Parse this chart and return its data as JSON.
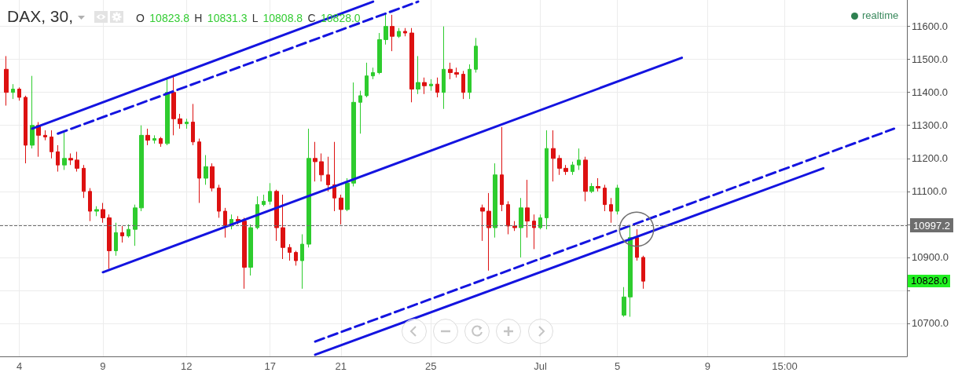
{
  "chart_data": {
    "type": "candlestick",
    "title": "DAX, 30,",
    "subtitle": "O 10823.8 H 10831.3 L 10808.8 C 10828.0",
    "annotations": [
      "realtime",
      "10828.0"
    ],
    "categories": [
      null,
      null,
      null,
      "4",
      null,
      null,
      null,
      null,
      null,
      null,
      null,
      null,
      null,
      null,
      null,
      null,
      "9",
      null,
      null,
      null,
      null,
      null,
      null,
      null,
      null,
      null,
      null,
      null,
      null,
      "12",
      null,
      null,
      null,
      null,
      null,
      null,
      null,
      null,
      null,
      null,
      null,
      null,
      "17",
      null,
      null,
      null,
      null,
      null,
      null,
      null,
      null,
      null,
      null,
      "21",
      null,
      null,
      null,
      null,
      null,
      null,
      null,
      null,
      null,
      null,
      null,
      null,
      null,
      "25",
      null,
      null,
      null,
      null,
      null,
      null,
      null,
      null,
      null,
      null,
      null,
      null,
      null,
      null,
      null,
      null,
      "Jul",
      null,
      null,
      null,
      null,
      null,
      null,
      null,
      null,
      null,
      null,
      null,
      "5",
      null,
      null,
      null,
      null,
      null,
      null,
      null,
      null,
      null,
      null,
      null,
      null,
      null,
      "9",
      null,
      null,
      null,
      null,
      null,
      null,
      null,
      null,
      null,
      null,
      null,
      "15:00",
      null,
      null,
      null,
      null,
      null,
      null,
      null,
      null,
      null,
      null,
      null,
      null,
      null,
      null,
      null,
      null,
      null,
      null,
      null
    ],
    "ylim": [
      10600,
      11680
    ],
    "yticks": [
      {
        "value": 10700,
        "label": "10700.0"
      },
      {
        "value": 10800,
        "label": null
      },
      {
        "value": 10900,
        "label": "10900.0"
      },
      {
        "value": 11000,
        "label": null
      },
      {
        "value": 11100,
        "label": "11100.0"
      },
      {
        "value": 11200,
        "label": "11200.0"
      },
      {
        "value": 11300,
        "label": "11300.0"
      },
      {
        "value": 11400,
        "label": "11400.0"
      },
      {
        "value": 11500,
        "label": "11500.0"
      },
      {
        "value": 11600,
        "label": "11600.0"
      }
    ],
    "grid": true,
    "ref_lines": [
      {
        "axis": "y",
        "value": 10997.2,
        "label": "10997.2",
        "color": "#6e6e6e",
        "line_style": "dashed"
      }
    ],
    "series": [
      {
        "ohlc": [
          null,
          [
            11470,
            11510,
            11360,
            11400
          ],
          [
            11400,
            11425,
            11380,
            11410
          ],
          [
            11410,
            11415,
            11375,
            11385
          ],
          [
            11385,
            11390,
            11185,
            11240
          ],
          [
            11240,
            11450,
            11230,
            11300
          ],
          [
            11300,
            11310,
            11205,
            11270
          ],
          [
            11270,
            11285,
            11255,
            11265
          ],
          [
            11265,
            11285,
            11200,
            11220
          ],
          [
            11220,
            11240,
            11160,
            11180
          ],
          [
            11180,
            11285,
            11165,
            11200
          ],
          [
            11200,
            11215,
            11180,
            11195
          ],
          [
            11195,
            11220,
            11160,
            11170
          ],
          [
            11170,
            11180,
            11080,
            11100
          ],
          [
            11100,
            11110,
            11010,
            11040
          ],
          [
            11040,
            11055,
            11025,
            11045
          ],
          [
            11045,
            11065,
            11005,
            11020
          ],
          [
            11020,
            11030,
            10865,
            10920
          ],
          [
            10920,
            11005,
            10905,
            10975
          ],
          [
            10975,
            10995,
            10945,
            10965
          ],
          [
            10965,
            11000,
            10960,
            10985
          ],
          [
            10985,
            11060,
            10935,
            11050
          ],
          [
            11050,
            11300,
            11040,
            11270
          ],
          [
            11270,
            11290,
            11240,
            11255
          ],
          [
            11255,
            11270,
            11245,
            11260
          ],
          [
            11260,
            11265,
            11235,
            11245
          ],
          [
            11245,
            11445,
            11240,
            11400
          ],
          [
            11400,
            11450,
            11270,
            11320
          ],
          [
            11320,
            11335,
            11290,
            11305
          ],
          [
            11305,
            11320,
            11290,
            11310
          ],
          [
            11310,
            11365,
            11240,
            11250
          ],
          [
            11250,
            11260,
            11065,
            11140
          ],
          [
            11140,
            11210,
            11120,
            11175
          ],
          [
            11175,
            11185,
            11100,
            11110
          ],
          [
            11110,
            11120,
            11020,
            11040
          ],
          [
            11040,
            11050,
            10960,
            10995
          ],
          [
            10995,
            11030,
            10985,
            11015
          ],
          [
            11015,
            11025,
            11000,
            11010
          ],
          [
            11010,
            11020,
            10805,
            10870
          ],
          [
            10870,
            11000,
            10845,
            10990
          ],
          [
            10990,
            11085,
            10985,
            11060
          ],
          [
            11060,
            11090,
            11055,
            11070
          ],
          [
            11070,
            11125,
            11060,
            11100
          ],
          [
            11100,
            11105,
            10950,
            10990
          ],
          [
            10990,
            11090,
            10895,
            10930
          ],
          [
            10930,
            10940,
            10890,
            10915
          ],
          [
            10915,
            10920,
            10875,
            10890
          ],
          [
            10890,
            10970,
            10805,
            10940
          ],
          [
            10940,
            11290,
            10930,
            11200
          ],
          [
            11200,
            11250,
            11130,
            11190
          ],
          [
            11190,
            11215,
            11130,
            11150
          ],
          [
            11150,
            11205,
            11100,
            11120
          ],
          [
            11120,
            11250,
            11040,
            11080
          ],
          [
            11080,
            11090,
            11000,
            11045
          ],
          [
            11045,
            11140,
            11040,
            11125
          ],
          [
            11125,
            11430,
            11115,
            11370
          ],
          [
            11370,
            11405,
            11275,
            11390
          ],
          [
            11390,
            11490,
            11385,
            11450
          ],
          [
            11450,
            11475,
            11440,
            11460
          ],
          [
            11460,
            11580,
            11455,
            11560
          ],
          [
            11560,
            11640,
            11545,
            11600
          ],
          [
            11600,
            11635,
            11525,
            11570
          ],
          [
            11570,
            11595,
            11565,
            11585
          ],
          [
            11585,
            11595,
            11570,
            11580
          ],
          [
            11580,
            11595,
            11370,
            11410
          ],
          [
            11410,
            11510,
            11395,
            11430
          ],
          [
            11430,
            11445,
            11395,
            11420
          ],
          [
            11420,
            11440,
            11405,
            11425
          ],
          [
            11425,
            11445,
            11385,
            11400
          ],
          [
            11400,
            11600,
            11350,
            11470
          ],
          [
            11470,
            11490,
            11440,
            11460
          ],
          [
            11460,
            11475,
            11445,
            11455
          ],
          [
            11455,
            11465,
            11380,
            11400
          ],
          [
            11400,
            11485,
            11380,
            11470
          ],
          [
            11470,
            11565,
            11460,
            11540
          ],
          [
            11050,
            11060,
            10950,
            11040
          ],
          [
            11040,
            11095,
            10860,
            10990
          ],
          [
            10990,
            11185,
            10960,
            11150
          ],
          [
            11150,
            11295,
            11040,
            11060
          ],
          [
            11060,
            11070,
            10970,
            10995
          ],
          [
            10995,
            11010,
            10980,
            10990
          ],
          [
            10990,
            11080,
            10900,
            11050
          ],
          [
            11050,
            11135,
            10960,
            11010
          ],
          [
            11010,
            11030,
            10925,
            10990
          ],
          [
            10990,
            11030,
            10985,
            11020
          ],
          [
            11020,
            11285,
            10985,
            11230
          ],
          [
            11230,
            11285,
            11130,
            11200
          ],
          [
            11200,
            11210,
            11150,
            11170
          ],
          [
            11170,
            11180,
            11150,
            11160
          ],
          [
            11160,
            11190,
            11150,
            11180
          ],
          [
            11180,
            11230,
            11165,
            11195
          ],
          [
            11195,
            11205,
            11070,
            11100
          ],
          [
            11100,
            11125,
            11095,
            11115
          ],
          [
            11115,
            11140,
            11100,
            11110
          ],
          [
            11110,
            11120,
            11040,
            11060
          ],
          [
            11060,
            11080,
            11005,
            11040
          ],
          [
            11040,
            11120,
            11030,
            11110
          ],
          [
            10725,
            10810,
            10720,
            10780
          ],
          [
            10780,
            10995,
            10720,
            10960
          ],
          [
            10960,
            10985,
            10890,
            10900
          ],
          [
            10900,
            10905,
            10805,
            10828
          ],
          null,
          null,
          null,
          null,
          null,
          null,
          null,
          null,
          null,
          null,
          null,
          null,
          null,
          null,
          null,
          null,
          null,
          null,
          null,
          null,
          null,
          null,
          null,
          null,
          null,
          null,
          null,
          null,
          null,
          null,
          null,
          null,
          null,
          null,
          null,
          null,
          null,
          null,
          null,
          null,
          null
        ],
        "colors": [
          null,
          "#dd1111",
          "#2ecc2e",
          "#dd1111",
          "#dd1111",
          "#2ecc2e",
          "#dd1111",
          "#dd1111",
          "#dd1111",
          "#dd1111",
          "#2ecc2e",
          "#dd1111",
          "#dd1111",
          "#dd1111",
          "#dd1111",
          "#2ecc2e",
          "#dd1111",
          "#dd1111",
          "#2ecc2e",
          "#dd1111",
          "#2ecc2e",
          "#2ecc2e",
          "#2ecc2e",
          "#dd1111",
          "#2ecc2e",
          "#dd1111",
          "#2ecc2e",
          "#dd1111",
          "#dd1111",
          "#2ecc2e",
          "#dd1111",
          "#dd1111",
          "#2ecc2e",
          "#dd1111",
          "#dd1111",
          "#dd1111",
          "#2ecc2e",
          "#dd1111",
          "#dd1111",
          "#2ecc2e",
          "#2ecc2e",
          "#2ecc2e",
          "#2ecc2e",
          "#dd1111",
          "#dd1111",
          "#dd1111",
          "#dd1111",
          "#2ecc2e",
          "#2ecc2e",
          "#dd1111",
          "#dd1111",
          "#dd1111",
          "#dd1111",
          "#dd1111",
          "#2ecc2e",
          "#2ecc2e",
          "#2ecc2e",
          "#2ecc2e",
          "#2ecc2e",
          "#2ecc2e",
          "#2ecc2e",
          "#dd1111",
          "#2ecc2e",
          "#dd1111",
          "#dd1111",
          "#2ecc2e",
          "#dd1111",
          "#2ecc2e",
          "#dd1111",
          "#2ecc2e",
          "#dd1111",
          "#dd1111",
          "#dd1111",
          "#2ecc2e",
          "#2ecc2e",
          "#dd1111",
          "#dd1111",
          "#2ecc2e",
          "#dd1111",
          "#dd1111",
          "#dd1111",
          "#2ecc2e",
          "#dd1111",
          "#dd1111",
          "#2ecc2e",
          "#2ecc2e",
          "#dd1111",
          "#dd1111",
          "#dd1111",
          "#2ecc2e",
          "#2ecc2e",
          "#dd1111",
          "#2ecc2e",
          "#dd1111",
          "#dd1111",
          "#dd1111",
          "#2ecc2e",
          "#2ecc2e",
          "#2ecc2e",
          "#dd1111",
          "#dd1111",
          null,
          null,
          null,
          null,
          null,
          null,
          null,
          null,
          null,
          null,
          null,
          null,
          null,
          null,
          null,
          null,
          null,
          null,
          null,
          null,
          null,
          null,
          null,
          null,
          null,
          null,
          null,
          null,
          null,
          null,
          null,
          null,
          null,
          null,
          null,
          null,
          null,
          null,
          null,
          null,
          null
        ]
      },
      {
        "type": "line",
        "color": "#1414e0",
        "line_style": "solid",
        "values": [
          null,
          null,
          null,
          null,
          null,
          11290,
          null,
          null,
          null,
          null,
          null,
          null,
          null,
          null,
          null,
          null,
          null,
          null,
          null,
          null,
          null,
          null,
          null,
          null,
          null,
          null,
          null,
          null,
          null,
          null,
          null,
          null,
          null,
          null,
          null,
          null,
          null,
          null,
          null,
          null,
          null,
          null,
          null,
          null,
          null,
          null,
          null,
          null,
          null,
          null,
          null,
          null,
          null,
          null,
          null,
          null,
          null,
          null,
          11675,
          null,
          null,
          null,
          null,
          null,
          null,
          null,
          null,
          null,
          null,
          null,
          null,
          null,
          null,
          null,
          null,
          null,
          null,
          null,
          null,
          null,
          null,
          null,
          null,
          null,
          null,
          null,
          null,
          null,
          null,
          null,
          null,
          null,
          null,
          null,
          null,
          null,
          null,
          null,
          null,
          null,
          null,
          null,
          null,
          null,
          null,
          null,
          null,
          null,
          null,
          null,
          null,
          null,
          null,
          null,
          null,
          null,
          null,
          null,
          null,
          null,
          null,
          null,
          null,
          null,
          null,
          null,
          null,
          null,
          null,
          null,
          null,
          null,
          null,
          null,
          null,
          null,
          null,
          null,
          null,
          null,
          null,
          null
        ]
      },
      {
        "type": "line",
        "color": "#1414e0",
        "line_style": "dashed",
        "values": [
          null,
          null,
          null,
          null,
          null,
          null,
          null,
          null,
          null,
          11275,
          null,
          null,
          null,
          null,
          null,
          null,
          null,
          null,
          null,
          null,
          null,
          null,
          null,
          null,
          null,
          null,
          null,
          null,
          null,
          null,
          null,
          null,
          null,
          null,
          null,
          null,
          null,
          null,
          null,
          null,
          null,
          null,
          null,
          null,
          null,
          null,
          null,
          null,
          null,
          null,
          null,
          null,
          null,
          null,
          null,
          null,
          null,
          null,
          null,
          null,
          null,
          null,
          null,
          null,
          null,
          11675,
          null,
          null,
          null,
          null,
          null,
          null,
          null,
          null,
          null,
          null,
          null,
          null,
          null,
          null,
          null,
          null,
          null,
          null,
          null,
          null,
          null,
          null,
          null,
          null,
          null,
          null,
          null,
          null,
          null,
          null,
          null,
          null,
          null,
          null,
          null,
          null,
          null,
          null,
          null,
          null,
          null,
          null,
          null,
          null,
          null,
          null,
          null,
          null,
          null,
          null,
          null,
          null,
          null,
          null,
          null,
          null,
          null,
          null,
          null,
          null,
          null,
          null,
          null,
          null,
          null,
          null,
          null,
          null,
          null,
          null,
          null,
          null,
          null,
          null,
          null,
          null
        ]
      },
      {
        "type": "line",
        "color": "#1414e0",
        "line_style": "solid",
        "values": [
          null,
          null,
          null,
          null,
          null,
          null,
          null,
          null,
          null,
          null,
          null,
          null,
          null,
          null,
          null,
          null,
          10855,
          null,
          null,
          null,
          null,
          null,
          null,
          null,
          null,
          null,
          null,
          null,
          null,
          null,
          null,
          null,
          null,
          null,
          null,
          null,
          null,
          null,
          null,
          null,
          null,
          null,
          null,
          null,
          null,
          null,
          null,
          null,
          null,
          null,
          null,
          null,
          null,
          null,
          null,
          null,
          null,
          null,
          null,
          null,
          null,
          null,
          null,
          null,
          null,
          null,
          null,
          null,
          null,
          null,
          null,
          null,
          null,
          null,
          null,
          null,
          null,
          null,
          null,
          null,
          null,
          null,
          null,
          null,
          null,
          null,
          null,
          null,
          null,
          null,
          null,
          null,
          null,
          null,
          null,
          null,
          null,
          null,
          null,
          null,
          null,
          null,
          null,
          null,
          null,
          null,
          11505,
          null,
          null,
          null,
          null,
          null,
          null,
          null,
          null,
          null,
          null,
          null,
          null,
          null,
          null,
          null,
          null,
          null,
          null,
          null,
          null,
          null,
          null,
          null,
          null,
          null,
          null,
          null,
          null,
          null,
          null,
          null,
          null,
          null,
          null,
          null
        ]
      },
      {
        "type": "line",
        "color": "#1414e0",
        "line_style": "dashed",
        "values": [
          null,
          null,
          null,
          null,
          null,
          null,
          null,
          null,
          null,
          null,
          null,
          null,
          null,
          null,
          null,
          null,
          null,
          null,
          null,
          null,
          null,
          null,
          null,
          null,
          null,
          null,
          null,
          null,
          null,
          null,
          null,
          null,
          null,
          null,
          null,
          null,
          null,
          null,
          null,
          null,
          null,
          null,
          null,
          null,
          null,
          null,
          null,
          null,
          null,
          10645,
          null,
          null,
          null,
          null,
          null,
          null,
          null,
          null,
          null,
          null,
          null,
          null,
          null,
          null,
          null,
          null,
          null,
          null,
          null,
          null,
          null,
          null,
          null,
          null,
          null,
          null,
          null,
          null,
          null,
          null,
          null,
          null,
          null,
          null,
          null,
          null,
          null,
          null,
          null,
          null,
          null,
          null,
          null,
          null,
          null,
          null,
          null,
          null,
          null,
          null,
          null,
          null,
          null,
          null,
          null,
          null,
          null,
          null,
          null,
          null,
          null,
          null,
          null,
          null,
          null,
          null,
          null,
          null,
          null,
          null,
          null,
          null,
          null,
          null,
          null,
          null,
          null,
          null,
          null,
          null,
          null,
          null,
          null,
          null,
          null,
          null,
          null,
          null,
          null,
          11290,
          null,
          null
        ]
      },
      {
        "type": "line",
        "color": "#1414e0",
        "line_style": "solid",
        "values": [
          null,
          null,
          null,
          null,
          null,
          null,
          null,
          null,
          null,
          null,
          null,
          null,
          null,
          null,
          null,
          null,
          null,
          null,
          null,
          null,
          null,
          null,
          null,
          null,
          null,
          null,
          null,
          null,
          null,
          null,
          null,
          null,
          null,
          null,
          null,
          null,
          null,
          null,
          null,
          null,
          null,
          null,
          null,
          null,
          null,
          null,
          null,
          null,
          null,
          10605,
          null,
          null,
          null,
          null,
          null,
          null,
          null,
          null,
          null,
          null,
          null,
          null,
          null,
          null,
          null,
          null,
          null,
          null,
          null,
          null,
          null,
          null,
          null,
          null,
          null,
          null,
          null,
          null,
          null,
          null,
          null,
          null,
          null,
          null,
          null,
          null,
          null,
          null,
          null,
          null,
          null,
          null,
          null,
          null,
          null,
          null,
          null,
          null,
          null,
          null,
          null,
          null,
          null,
          null,
          null,
          null,
          null,
          null,
          null,
          null,
          null,
          null,
          null,
          null,
          null,
          null,
          null,
          null,
          null,
          null,
          null,
          null,
          null,
          null,
          null,
          null,
          null,
          null,
          11170,
          null,
          null,
          null,
          null,
          null,
          null,
          null,
          null,
          null,
          null,
          null,
          null,
          null
        ]
      }
    ]
  }
}
